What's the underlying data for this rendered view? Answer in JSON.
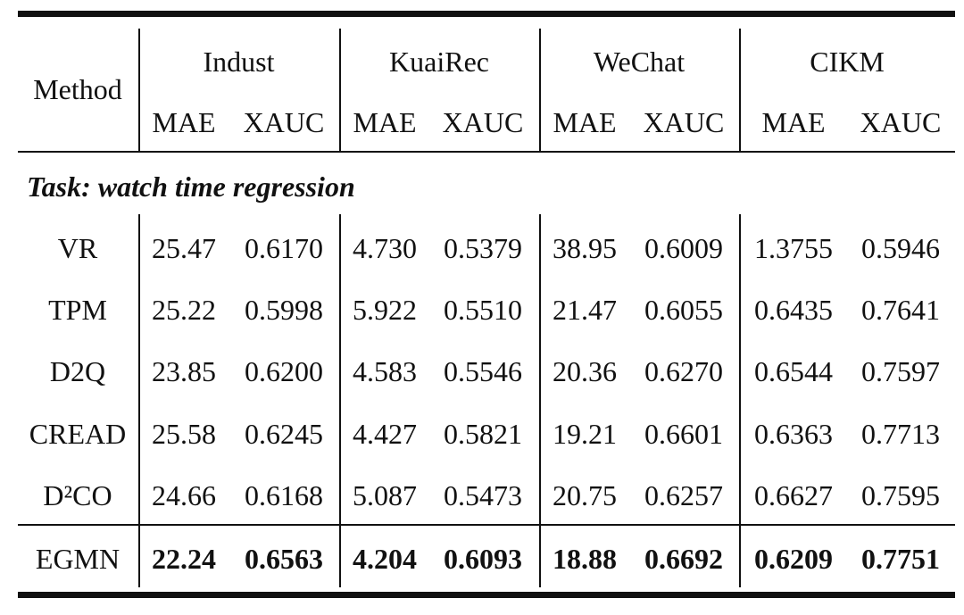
{
  "table": {
    "method_header": "Method",
    "groups": [
      "Indust",
      "KuaiRec",
      "WeChat",
      "CIKM"
    ],
    "subcolumns": [
      "MAE",
      "XAUC"
    ],
    "section": "Task: watch time regression",
    "rows": [
      {
        "method": "VR",
        "cells": [
          "25.47",
          "0.6170",
          "4.730",
          "0.5379",
          "38.95",
          "0.6009",
          "1.3755",
          "0.5946"
        ]
      },
      {
        "method": "TPM",
        "cells": [
          "25.22",
          "0.5998",
          "5.922",
          "0.5510",
          "21.47",
          "0.6055",
          "0.6435",
          "0.7641"
        ]
      },
      {
        "method": "D2Q",
        "cells": [
          "23.85",
          "0.6200",
          "4.583",
          "0.5546",
          "20.36",
          "0.6270",
          "0.6544",
          "0.7597"
        ]
      },
      {
        "method": "CREAD",
        "cells": [
          "25.58",
          "0.6245",
          "4.427",
          "0.5821",
          "19.21",
          "0.6601",
          "0.6363",
          "0.7713"
        ]
      },
      {
        "method": "D²CO",
        "cells": [
          "24.66",
          "0.6168",
          "5.087",
          "0.5473",
          "20.75",
          "0.6257",
          "0.6627",
          "0.7595"
        ]
      }
    ],
    "proposed": {
      "method": "EGMN",
      "cells": [
        "22.24",
        "0.6563",
        "4.204",
        "0.6093",
        "18.88",
        "0.6692",
        "0.6209",
        "0.7751"
      ]
    }
  }
}
